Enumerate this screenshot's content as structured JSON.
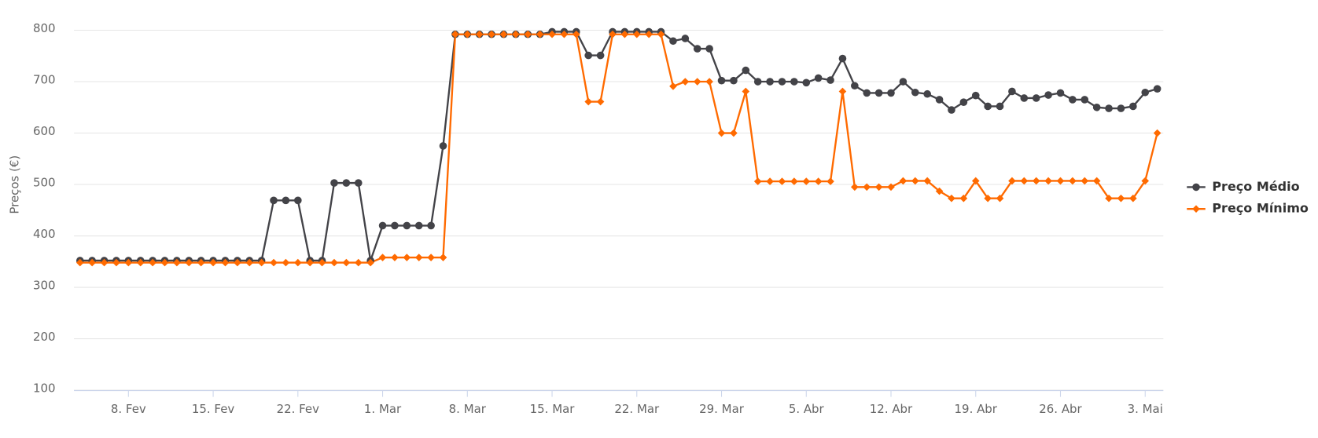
{
  "chart_data": {
    "type": "line",
    "y_label": "Preços (€)",
    "categories": [
      null,
      null,
      null,
      null,
      "8. Fev",
      null,
      null,
      null,
      null,
      null,
      null,
      "15. Fev",
      null,
      null,
      null,
      null,
      null,
      null,
      "22. Fev",
      null,
      null,
      null,
      null,
      null,
      null,
      "1. Mar",
      null,
      null,
      null,
      null,
      null,
      null,
      "8. Mar",
      null,
      null,
      null,
      null,
      null,
      null,
      "15. Mar",
      null,
      null,
      null,
      null,
      null,
      null,
      "22. Mar",
      null,
      null,
      null,
      null,
      null,
      null,
      "29. Mar",
      null,
      null,
      null,
      null,
      null,
      null,
      "5. Abr",
      null,
      null,
      null,
      null,
      null,
      null,
      "12. Abr",
      null,
      null,
      null,
      null,
      null,
      null,
      "19. Abr",
      null,
      null,
      null,
      null,
      null,
      null,
      "26. Abr",
      null,
      null,
      null,
      null,
      null,
      null,
      "3. Mai",
      null
    ],
    "series": [
      {
        "name": "Preço Médio",
        "color": "#434348",
        "marker": "circle",
        "values": [
          352,
          352,
          352,
          352,
          352,
          352,
          352,
          352,
          352,
          352,
          352,
          352,
          352,
          352,
          352,
          352,
          469,
          469,
          469,
          352,
          352,
          503,
          503,
          503,
          352,
          420,
          420,
          420,
          420,
          420,
          575,
          792,
          792,
          792,
          792,
          792,
          792,
          792,
          792,
          797,
          797,
          797,
          751,
          751,
          797,
          797,
          797,
          797,
          797,
          779,
          784,
          764,
          764,
          702,
          702,
          722,
          700,
          700,
          700,
          700,
          698,
          707,
          703,
          745,
          692,
          678,
          678,
          678,
          700,
          679,
          676,
          665,
          645,
          660,
          673,
          652,
          652,
          681,
          668,
          668,
          674,
          678,
          665,
          665,
          650,
          648,
          648,
          652,
          679,
          686
        ]
      },
      {
        "name": "Preço Mínimo",
        "color": "#ff6a00",
        "marker": "diamond",
        "values": [
          348,
          348,
          348,
          348,
          348,
          348,
          348,
          348,
          348,
          348,
          348,
          348,
          348,
          348,
          348,
          348,
          348,
          348,
          348,
          348,
          348,
          348,
          348,
          348,
          348,
          358,
          358,
          358,
          358,
          358,
          358,
          792,
          792,
          792,
          792,
          792,
          792,
          792,
          792,
          792,
          792,
          792,
          661,
          661,
          792,
          792,
          792,
          792,
          792,
          691,
          700,
          700,
          700,
          600,
          600,
          681,
          506,
          506,
          506,
          506,
          506,
          506,
          506,
          681,
          495,
          495,
          495,
          495,
          507,
          507,
          507,
          487,
          473,
          473,
          507,
          473,
          473,
          507,
          507,
          507,
          507,
          507,
          507,
          507,
          507,
          473,
          473,
          473,
          507,
          600
        ]
      }
    ],
    "ylim": [
      100,
      800
    ],
    "yticks": [
      100,
      200,
      300,
      400,
      500,
      600,
      700,
      800
    ],
    "grid": true,
    "legend": "right"
  }
}
